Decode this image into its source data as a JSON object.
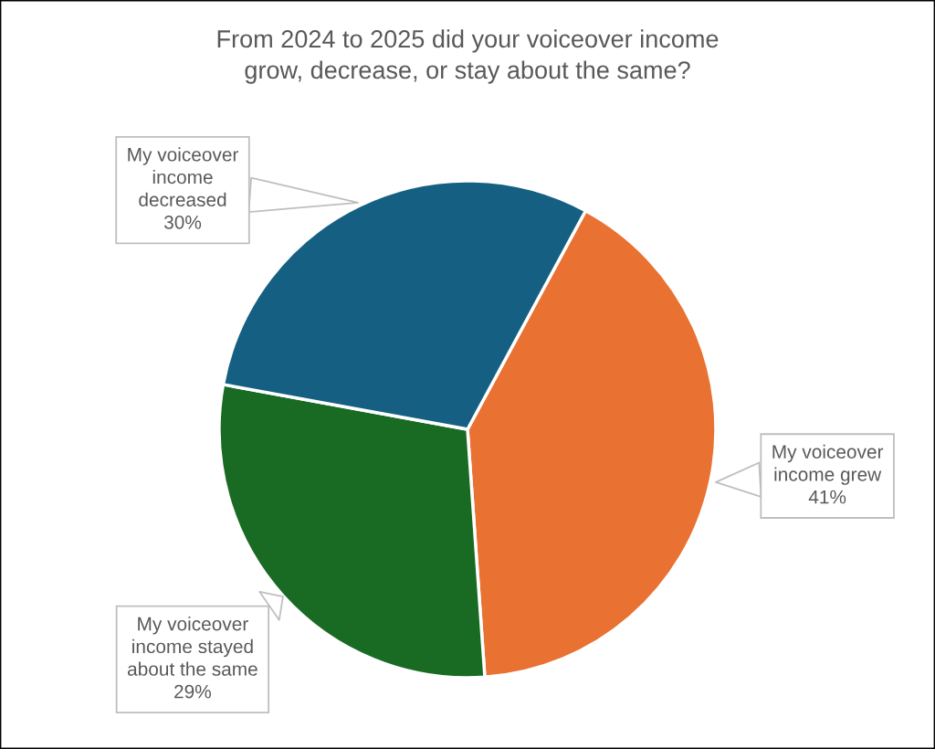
{
  "chart_data": {
    "type": "pie",
    "title": "From 2024 to 2025 did your voiceover income\ngrow, decrease, or stay about the same?",
    "categories": [
      "My voiceover\nincome grew",
      "My voiceover\nincome stayed\nabout the same",
      "My voiceover\nincome\ndecreased"
    ],
    "values": [
      41,
      29,
      30
    ],
    "value_labels": [
      "41%",
      "29%",
      "30%"
    ],
    "colors": [
      "#e97132",
      "#196b24",
      "#156082"
    ]
  }
}
